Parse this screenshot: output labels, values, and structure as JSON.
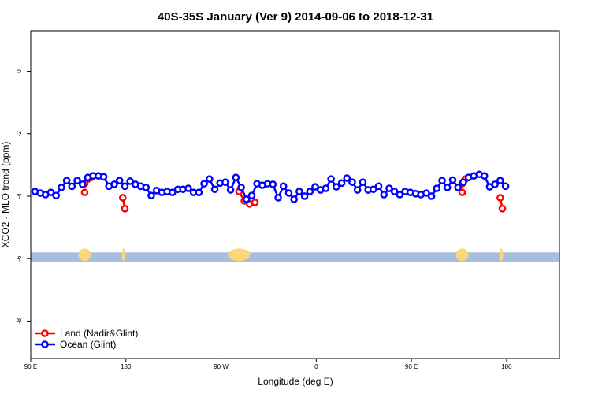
{
  "chart_data": {
    "type": "line",
    "title": "40S-35S January (Ver 9)   2014-09-06 to 2018-12-31",
    "xlabel": "Longitude (deg E)",
    "ylabel": "XCO2 - MLO trend (ppm)",
    "xlim": [
      90,
      590
    ],
    "ylim": [
      -9.2,
      1.3
    ],
    "x_ticks": [
      {
        "value": 90,
        "label": "90 E"
      },
      {
        "value": 180,
        "label": "180"
      },
      {
        "value": 270,
        "label": "90 W"
      },
      {
        "value": 360,
        "label": "0"
      },
      {
        "value": 450,
        "label": "90 E"
      },
      {
        "value": 540,
        "label": "180"
      }
    ],
    "y_ticks": [
      {
        "value": 0,
        "label": "0"
      },
      {
        "value": -2,
        "label": "-2"
      },
      {
        "value": -4,
        "label": "-4"
      },
      {
        "value": -6,
        "label": "-6"
      },
      {
        "value": -8,
        "label": "-8"
      }
    ],
    "legend_position": "bottom-left",
    "land_band": {
      "y_top": -5.8,
      "y_bottom": -6.1,
      "color": "#a9bedc",
      "land_color": "#f9d77a"
    },
    "series": [
      {
        "name": "Land (Nadir&Glint)",
        "color": "#ff0000",
        "segments": [
          [
            [
              141,
              -3.6
            ],
            [
              144,
              -3.45
            ],
            [
              147,
              -3.4
            ]
          ],
          [
            [
              141,
              -3.88
            ]
          ],
          [
            [
              177,
              -4.05
            ],
            [
              179,
              -4.4
            ]
          ],
          [
            [
              287,
              -3.85
            ],
            [
              292,
              -4.15
            ],
            [
              297,
              -4.25
            ],
            [
              302,
              -4.2
            ]
          ],
          [
            [
              498,
              -3.6
            ],
            [
              501,
              -3.45
            ],
            [
              504,
              -3.4
            ]
          ],
          [
            [
              498,
              -3.88
            ]
          ],
          [
            [
              534,
              -4.05
            ],
            [
              536,
              -4.4
            ]
          ]
        ]
      },
      {
        "name": "Ocean (Glint)",
        "color": "#0000ff",
        "x": [
          94,
          99,
          104,
          109,
          114,
          119,
          124,
          129,
          134,
          139,
          144,
          149,
          154,
          159,
          164,
          169,
          174,
          179,
          184,
          189,
          194,
          199,
          204,
          209,
          214,
          219,
          224,
          229,
          234,
          239,
          244,
          249,
          254,
          259,
          264,
          269,
          274,
          279,
          284,
          289,
          294,
          299,
          304,
          309,
          314,
          319,
          324,
          329,
          334,
          339,
          344,
          349,
          354,
          359,
          364,
          369,
          374,
          379,
          384,
          389,
          394,
          399,
          404,
          409,
          414,
          419,
          424,
          429,
          434,
          439,
          444,
          449,
          454,
          459,
          464,
          469,
          474,
          479,
          484,
          489,
          494,
          499,
          504,
          509,
          514,
          519,
          524,
          529,
          534,
          539
        ],
        "y": [
          -3.85,
          -3.9,
          -3.95,
          -3.88,
          -3.98,
          -3.72,
          -3.5,
          -3.68,
          -3.5,
          -3.62,
          -3.4,
          -3.35,
          -3.35,
          -3.38,
          -3.68,
          -3.62,
          -3.5,
          -3.68,
          -3.52,
          -3.62,
          -3.68,
          -3.72,
          -3.98,
          -3.82,
          -3.88,
          -3.85,
          -3.88,
          -3.78,
          -3.78,
          -3.75,
          -3.88,
          -3.88,
          -3.6,
          -3.45,
          -3.78,
          -3.58,
          -3.55,
          -3.8,
          -3.4,
          -3.72,
          -4.1,
          -3.98,
          -3.6,
          -3.65,
          -3.6,
          -3.62,
          -4.05,
          -3.68,
          -3.9,
          -4.1,
          -3.85,
          -4.0,
          -3.85,
          -3.7,
          -3.8,
          -3.75,
          -3.45,
          -3.7,
          -3.58,
          -3.42,
          -3.55,
          -3.8,
          -3.55,
          -3.8,
          -3.78,
          -3.68,
          -3.95,
          -3.75,
          -3.85,
          -3.95,
          -3.85,
          -3.88,
          -3.92,
          -3.95,
          -3.9,
          -4.0,
          -3.75,
          -3.5,
          -3.72,
          -3.48,
          -3.72,
          -3.55,
          -3.4,
          -3.35,
          -3.3,
          -3.35,
          -3.7,
          -3.62,
          -3.5,
          -3.68
        ]
      }
    ]
  }
}
